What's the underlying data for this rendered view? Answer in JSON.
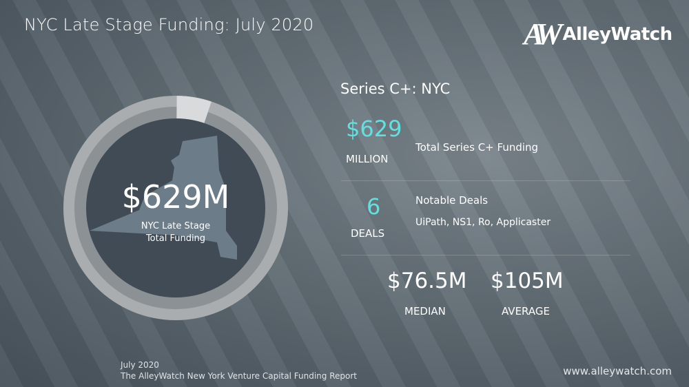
{
  "header": {
    "title": "NYC Late Stage Funding: July 2020",
    "logo_text": "AlleyWatch",
    "logo_mark": "AW"
  },
  "donut": {
    "value": "$629M",
    "label_line1": "NYC Late Stage",
    "label_line2": "Total Funding",
    "highlight_fraction": 0.05,
    "colors": {
      "outer": "#a9adb0",
      "inner": "#8c9196",
      "highlight": "#d8dadb",
      "center": "#414b55",
      "state": "#6d7c89"
    }
  },
  "panel": {
    "subtitle": "Series C+: NYC",
    "funding": {
      "value": "$629",
      "unit": "MILLION",
      "label": "Total Series C+ Funding"
    },
    "deals": {
      "value": "6",
      "unit": "DEALS",
      "label": "Notable Deals",
      "list": "UiPath, NS1, Ro, Applicaster"
    },
    "median": {
      "value": "$76.5M",
      "label": "MEDIAN"
    },
    "average": {
      "value": "$105M",
      "label": "AVERAGE"
    },
    "accent": "#62e0e0"
  },
  "footer": {
    "date": "July 2020",
    "report": "The AlleyWatch New York Venture Capital Funding Report",
    "url": "www.alleywatch.com"
  }
}
